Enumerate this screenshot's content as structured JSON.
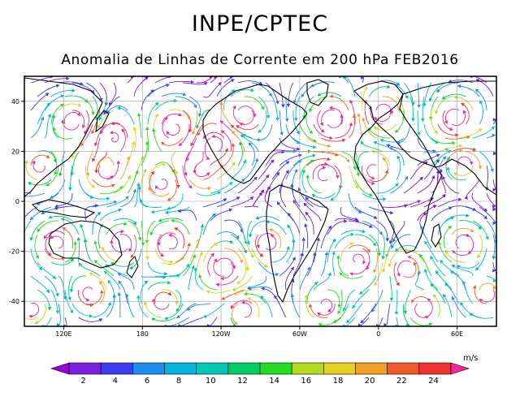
{
  "title": "INPE/CPTEC",
  "subtitle": "Anomalia de Linhas de Corrente em 200 hPa FEB2016",
  "map": {
    "lat_labels": [
      "40",
      "20",
      "0",
      "-20",
      "-40"
    ],
    "lon_labels": [
      "120E",
      "180",
      "120W",
      "60W",
      "0",
      "60E"
    ],
    "lat_values": [
      40,
      20,
      0,
      -20,
      -40
    ],
    "lon_values": [
      120,
      180,
      240,
      300,
      360,
      420
    ]
  },
  "colorbar": {
    "unit": "m/s",
    "labels": [
      "2",
      "4",
      "6",
      "8",
      "10",
      "12",
      "14",
      "16",
      "18",
      "20",
      "22",
      "24"
    ],
    "colors": [
      "#9b00d2",
      "#7a1ee0",
      "#3c3cf0",
      "#1e8cf0",
      "#00b4dc",
      "#00c8b4",
      "#00cc66",
      "#22dd22",
      "#b4dc1e",
      "#e6d21e",
      "#f0a028",
      "#f05a28",
      "#f03232",
      "#f0289b"
    ]
  }
}
